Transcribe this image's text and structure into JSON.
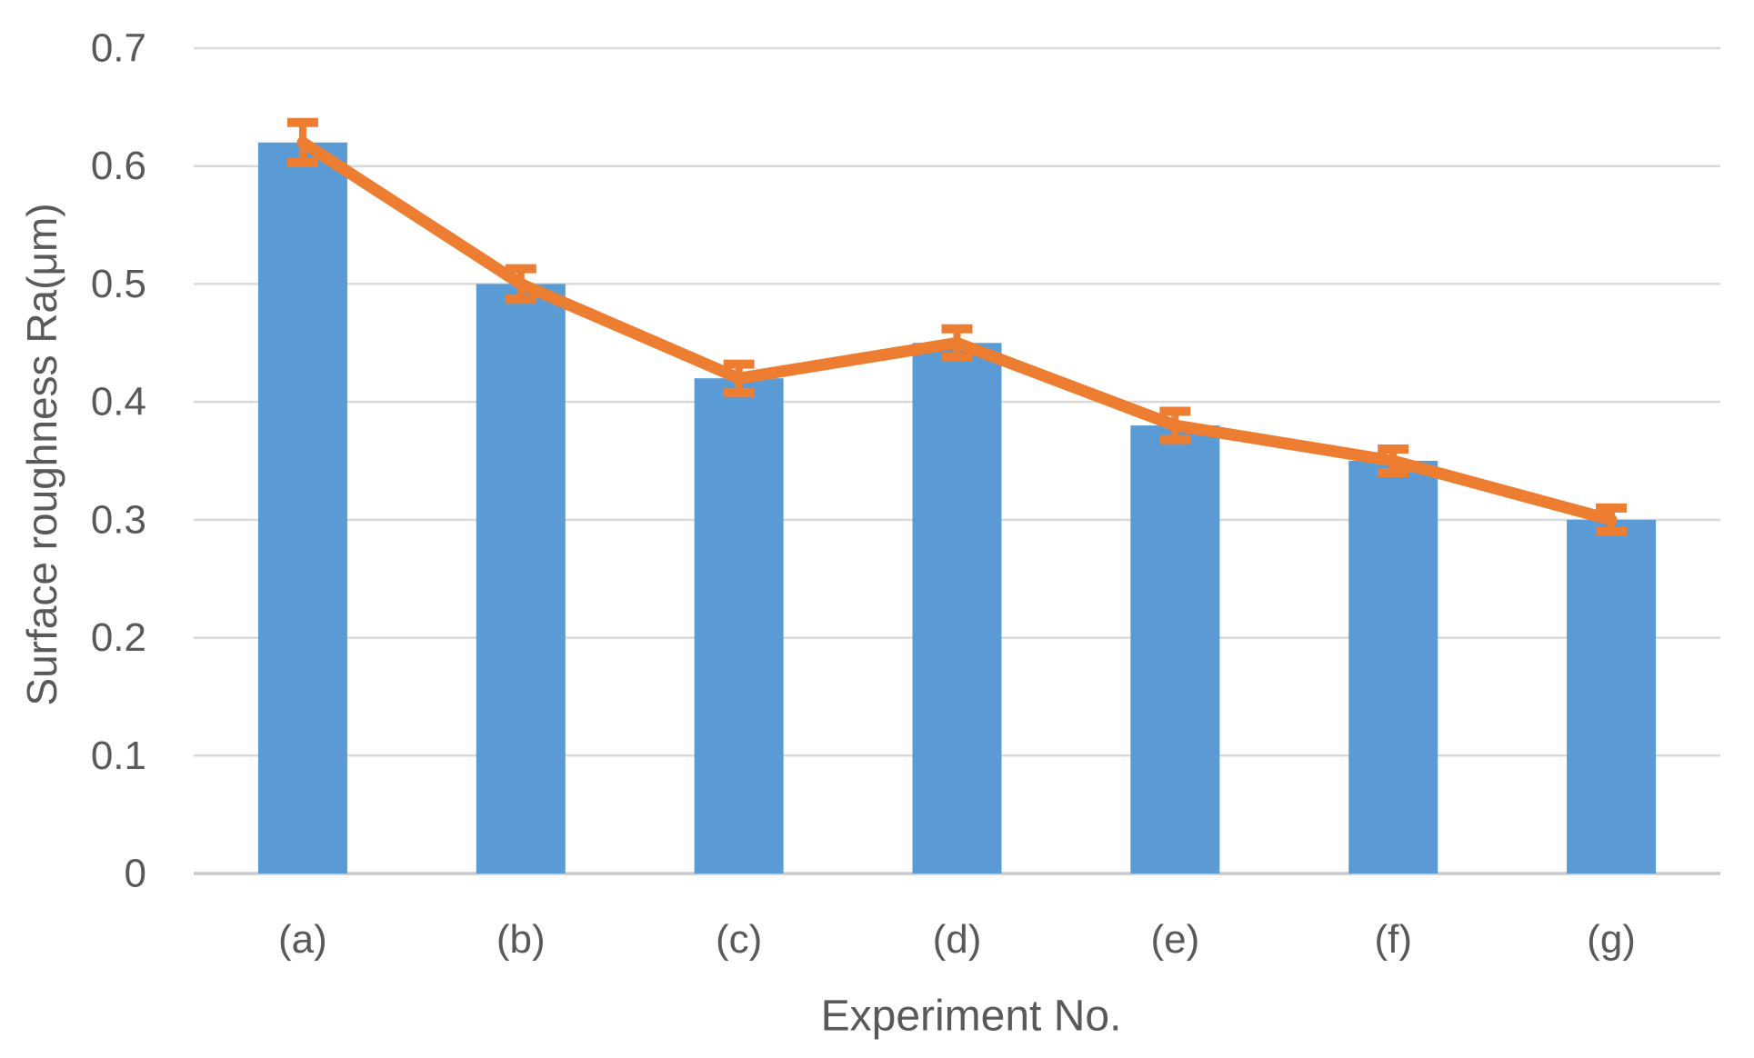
{
  "figure": {
    "background": "#ffffff"
  },
  "chart_data": {
    "type": "bar",
    "title": "",
    "categories": [
      "(a)",
      "(b)",
      "(c)",
      "(d)",
      "(e)",
      "(f)",
      "(g)"
    ],
    "series": [
      {
        "name": "surface-roughness-bars",
        "type": "bar",
        "color": "#5B9BD5",
        "values": [
          0.62,
          0.5,
          0.42,
          0.45,
          0.38,
          0.35,
          0.3
        ]
      },
      {
        "name": "surface-roughness-line",
        "type": "line",
        "color": "#ED7D31",
        "values": [
          0.62,
          0.5,
          0.42,
          0.45,
          0.38,
          0.35,
          0.3
        ],
        "error_bars": [
          0.017,
          0.013,
          0.012,
          0.012,
          0.012,
          0.01,
          0.01
        ]
      }
    ],
    "xlabel": "Experiment No.",
    "ylabel": "Surface roughness Ra(μm)",
    "ylim": [
      0,
      0.7
    ],
    "ytick_step": 0.1,
    "yticks": [
      "0",
      "0.1",
      "0.2",
      "0.3",
      "0.4",
      "0.5",
      "0.6",
      "0.7"
    ],
    "grid": true,
    "legend": "none",
    "colors": {
      "bar": "#5B9BD5",
      "line": "#ED7D31",
      "gridline": "#D9D9D9",
      "axis_line": "#C9C9C9",
      "text": "#595959"
    }
  }
}
